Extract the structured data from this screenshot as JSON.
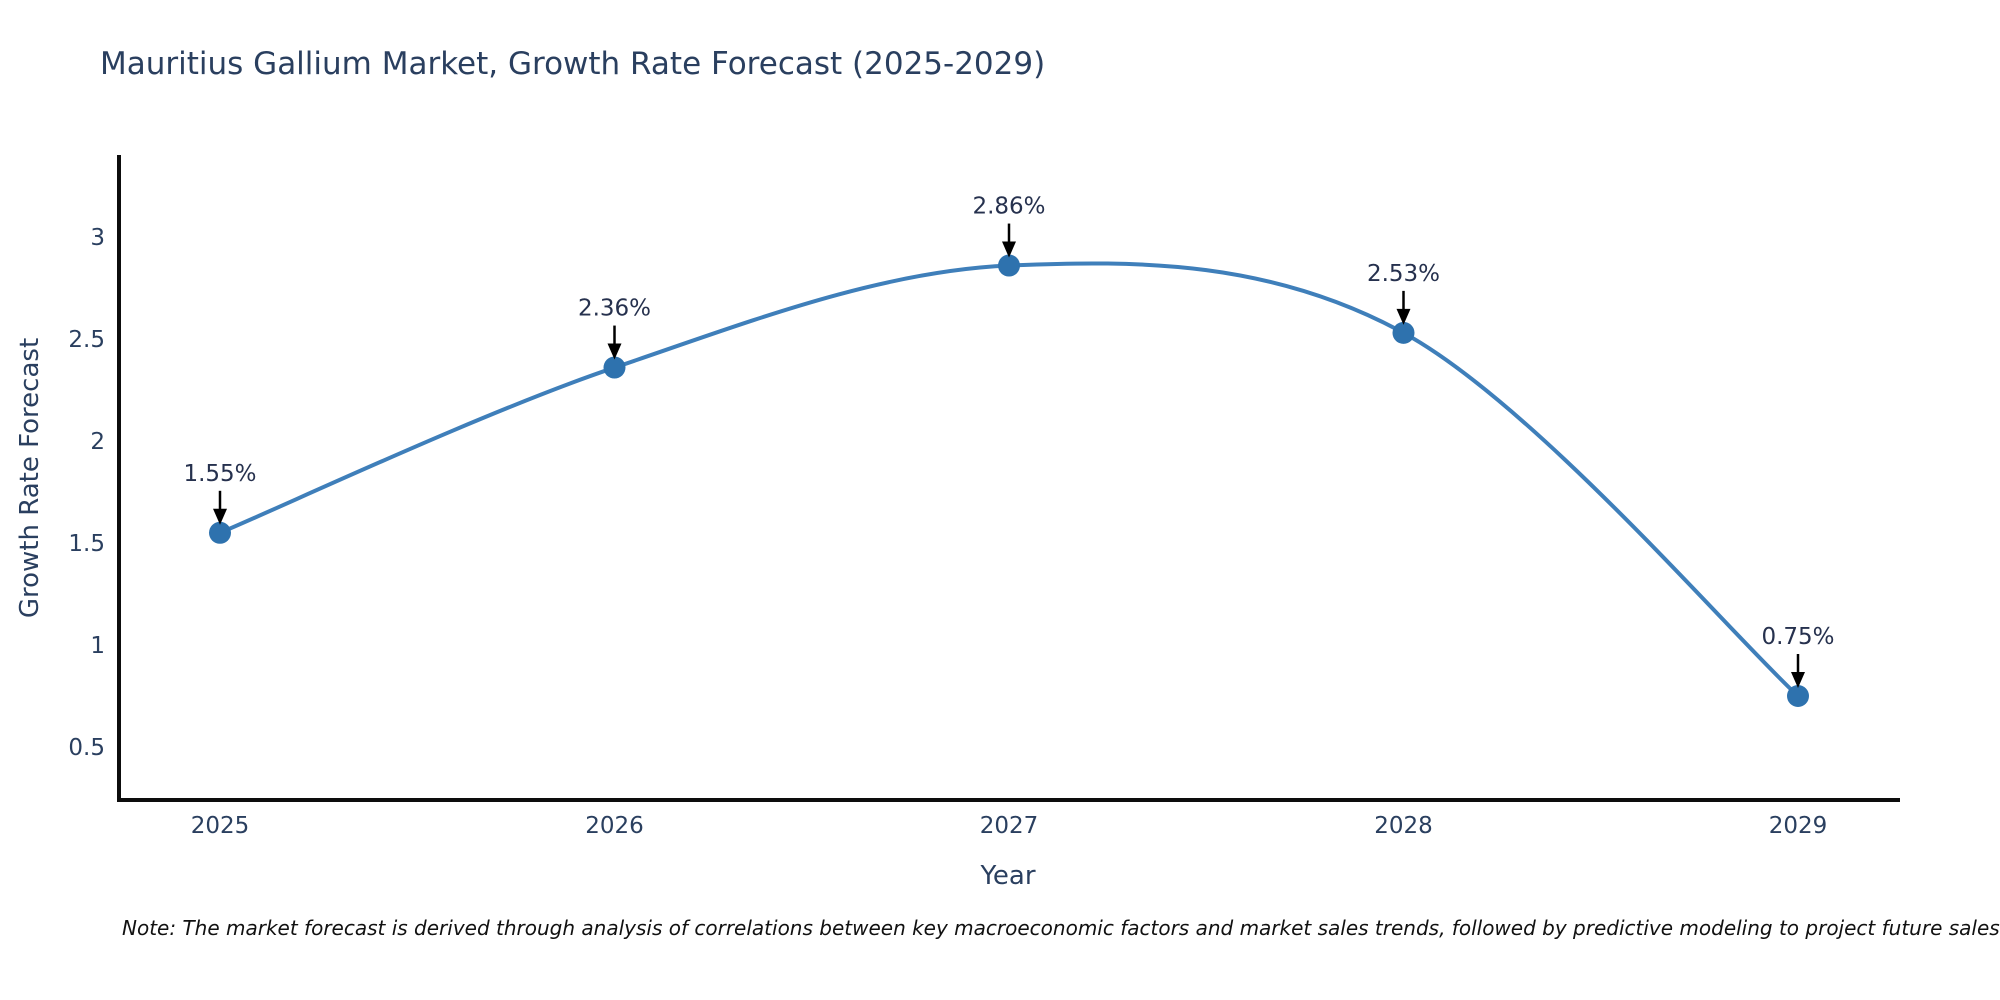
{
  "title": "Mauritius Gallium Market, Growth Rate Forecast (2025-2029)",
  "note": "Note: The market forecast is derived through analysis of correlations between key macroeconomic factors and market sales trends, followed by predictive modeling to project future sales",
  "colors": {
    "line": "#3f7fba",
    "marker": "#2e72ae",
    "axis": "#0d0d0d",
    "arrow": "#000000",
    "text": "#2a3f5f"
  },
  "chart_data": {
    "type": "line",
    "title": "Mauritius Gallium Market, Growth Rate Forecast (2025-2029)",
    "xlabel": "Year",
    "ylabel": "Growth Rate Forecast",
    "x": [
      2025,
      2026,
      2027,
      2028,
      2029
    ],
    "y": [
      1.55,
      2.36,
      2.86,
      2.53,
      0.75
    ],
    "point_labels": [
      "1.55%",
      "2.36%",
      "2.86%",
      "2.53%",
      "0.75%"
    ],
    "yticks": [
      0.5,
      1,
      1.5,
      2,
      2.5,
      3
    ],
    "ylim": [
      0.24,
      3.4
    ],
    "line_shape": "spline",
    "grid": false,
    "legend": false,
    "annotations": "black down-arrows from each percentage label to its data point"
  }
}
